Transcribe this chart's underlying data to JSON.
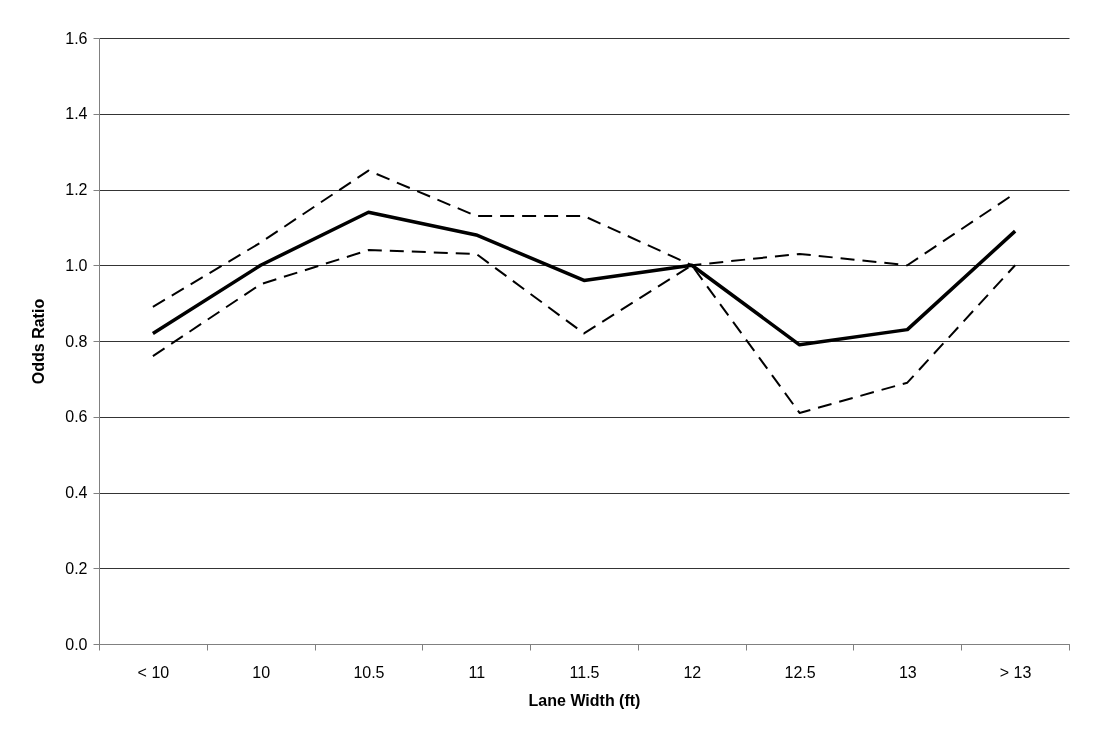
{
  "chart_data": {
    "type": "line",
    "xlabel": "Lane Width (ft)",
    "ylabel": "Odds Ratio",
    "categories": [
      "< 10",
      "10",
      "10.5",
      "11",
      "11.5",
      "12",
      "12.5",
      "13",
      "> 13"
    ],
    "series": [
      {
        "color": "#000000",
        "line_style": "solid",
        "values": [
          0.82,
          1.0,
          1.14,
          1.08,
          0.96,
          1.0,
          0.79,
          0.83,
          1.09
        ]
      },
      {
        "color": "#000000",
        "line_style": "dashed",
        "values": [
          0.89,
          1.06,
          1.25,
          1.13,
          1.13,
          1.0,
          1.03,
          1.0,
          1.19
        ]
      },
      {
        "color": "#000000",
        "line_style": "dashed",
        "values": [
          0.76,
          0.95,
          1.04,
          1.03,
          0.82,
          1.0,
          0.61,
          0.69,
          1.0
        ]
      }
    ],
    "ylim": [
      0,
      1.6
    ],
    "yticks": [
      {
        "value": 0,
        "label": "0.0"
      },
      {
        "value": 0.2,
        "label": "0.2"
      },
      {
        "value": 0.4,
        "label": "0.4"
      },
      {
        "value": 0.6,
        "label": "0.6"
      },
      {
        "value": 0.8,
        "label": "0.8"
      },
      {
        "value": 1,
        "label": "1.0"
      },
      {
        "value": 1.2,
        "label": "1.2"
      },
      {
        "value": 1.4,
        "label": "1.4"
      },
      {
        "value": 1.6,
        "label": "1.6"
      }
    ],
    "grid": "y",
    "marker": "none"
  }
}
